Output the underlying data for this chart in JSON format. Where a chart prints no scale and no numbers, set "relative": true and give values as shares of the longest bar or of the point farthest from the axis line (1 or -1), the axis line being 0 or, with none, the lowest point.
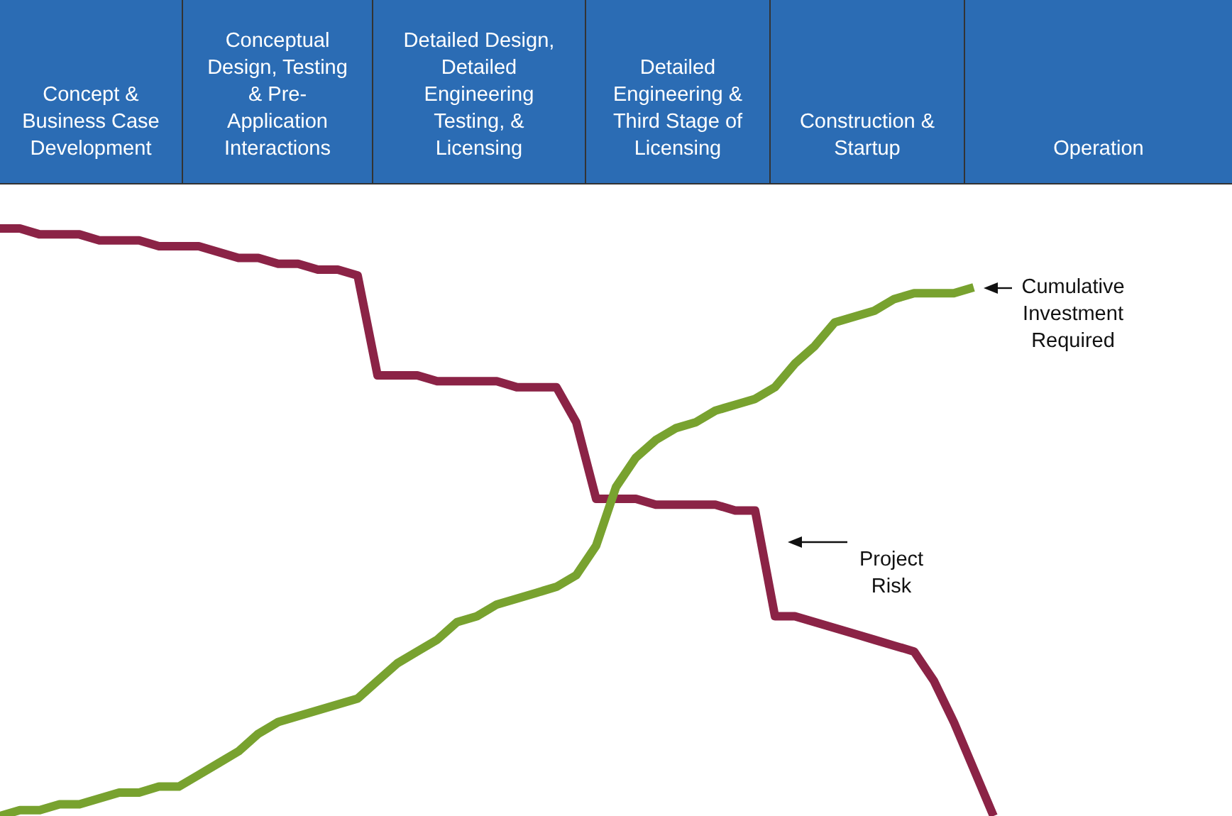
{
  "chart_data": {
    "type": "line",
    "relative": true,
    "categories": [
      null,
      null,
      null,
      null,
      null,
      null,
      null,
      null,
      null,
      null,
      null,
      null,
      null,
      null,
      null,
      null,
      null,
      null,
      null,
      null,
      null,
      null,
      null,
      null,
      null,
      null,
      null,
      null,
      null,
      null,
      null,
      null,
      null,
      null,
      null,
      null,
      null,
      null,
      null,
      null,
      null,
      null,
      null,
      null,
      null,
      null,
      null,
      null,
      null,
      null,
      null,
      null,
      null,
      null,
      null,
      null,
      null,
      null,
      null,
      null,
      null,
      null,
      null
    ],
    "series": [
      {
        "name": "Project Risk",
        "color": "#8b2346",
        "values": [
          1.0,
          1.0,
          0.99,
          0.99,
          0.99,
          0.98,
          0.98,
          0.98,
          0.97,
          0.97,
          0.97,
          0.96,
          0.95,
          0.95,
          0.94,
          0.94,
          0.93,
          0.93,
          0.92,
          0.75,
          0.75,
          0.75,
          0.74,
          0.74,
          0.74,
          0.74,
          0.73,
          0.73,
          0.73,
          0.67,
          0.54,
          0.54,
          0.54,
          0.53,
          0.53,
          0.53,
          0.53,
          0.52,
          0.52,
          0.34,
          0.34,
          0.33,
          0.32,
          0.31,
          0.3,
          0.29,
          0.28,
          0.23,
          0.16,
          0.08,
          0.0,
          null,
          null,
          null,
          null,
          null,
          null,
          null,
          null,
          null,
          null,
          null,
          null
        ]
      },
      {
        "name": "Cumulative Investment Required",
        "color": "#78a22f",
        "values": [
          0.0,
          0.01,
          0.01,
          0.02,
          0.02,
          0.03,
          0.04,
          0.04,
          0.05,
          0.05,
          0.07,
          0.09,
          0.11,
          0.14,
          0.16,
          0.17,
          0.18,
          0.19,
          0.2,
          0.23,
          0.26,
          0.28,
          0.3,
          0.33,
          0.34,
          0.36,
          0.37,
          0.38,
          0.39,
          0.41,
          0.46,
          0.56,
          0.61,
          0.64,
          0.66,
          0.67,
          0.69,
          0.7,
          0.71,
          0.73,
          0.77,
          0.8,
          0.84,
          0.85,
          0.86,
          0.88,
          0.89,
          0.89,
          0.89,
          0.9,
          null,
          null,
          null,
          null,
          null,
          null,
          null,
          null,
          null,
          null,
          null,
          null,
          null
        ]
      }
    ],
    "annotations": [
      "Concept & Business Case Development",
      "Conceptual Design, Testing & Pre-Application Interactions",
      "Detailed Design, Detailed Engineering Testing, & Licensing",
      "Detailed Engineering & Third Stage of Licensing",
      "Construction & Startup",
      "Operation"
    ]
  }
}
